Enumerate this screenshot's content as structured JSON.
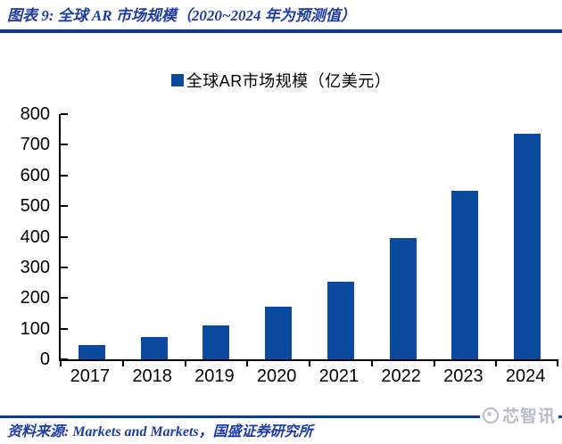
{
  "header": {
    "title": "图表 9: 全球 AR 市场规模（2020~2024 年为预测值）"
  },
  "legend": {
    "label": "全球AR市场规模（亿美元）",
    "marker_color": "#0b4a9f"
  },
  "chart_data": {
    "type": "bar",
    "title": "全球AR市场规模（亿美元）",
    "categories": [
      "2017",
      "2018",
      "2019",
      "2020",
      "2021",
      "2022",
      "2023",
      "2024"
    ],
    "values": [
      46,
      73,
      112,
      171,
      254,
      396,
      550,
      735
    ],
    "xlabel": "",
    "ylabel": "",
    "ylim": [
      0,
      800
    ],
    "yticks": [
      0,
      100,
      200,
      300,
      400,
      500,
      600,
      700,
      800
    ],
    "bar_color": "#0b4a9f",
    "grid": false,
    "legend_position": "top-center"
  },
  "footer": {
    "source": "资料来源: Markets and Markets，国盛证券研究所",
    "watermark": "芯智讯"
  },
  "colors": {
    "bar": "#0b4a9f",
    "accent_text": "#1e3ca6",
    "divider": "#0c3c94",
    "axis": "#000000",
    "watermark": "#b7bdc8"
  }
}
